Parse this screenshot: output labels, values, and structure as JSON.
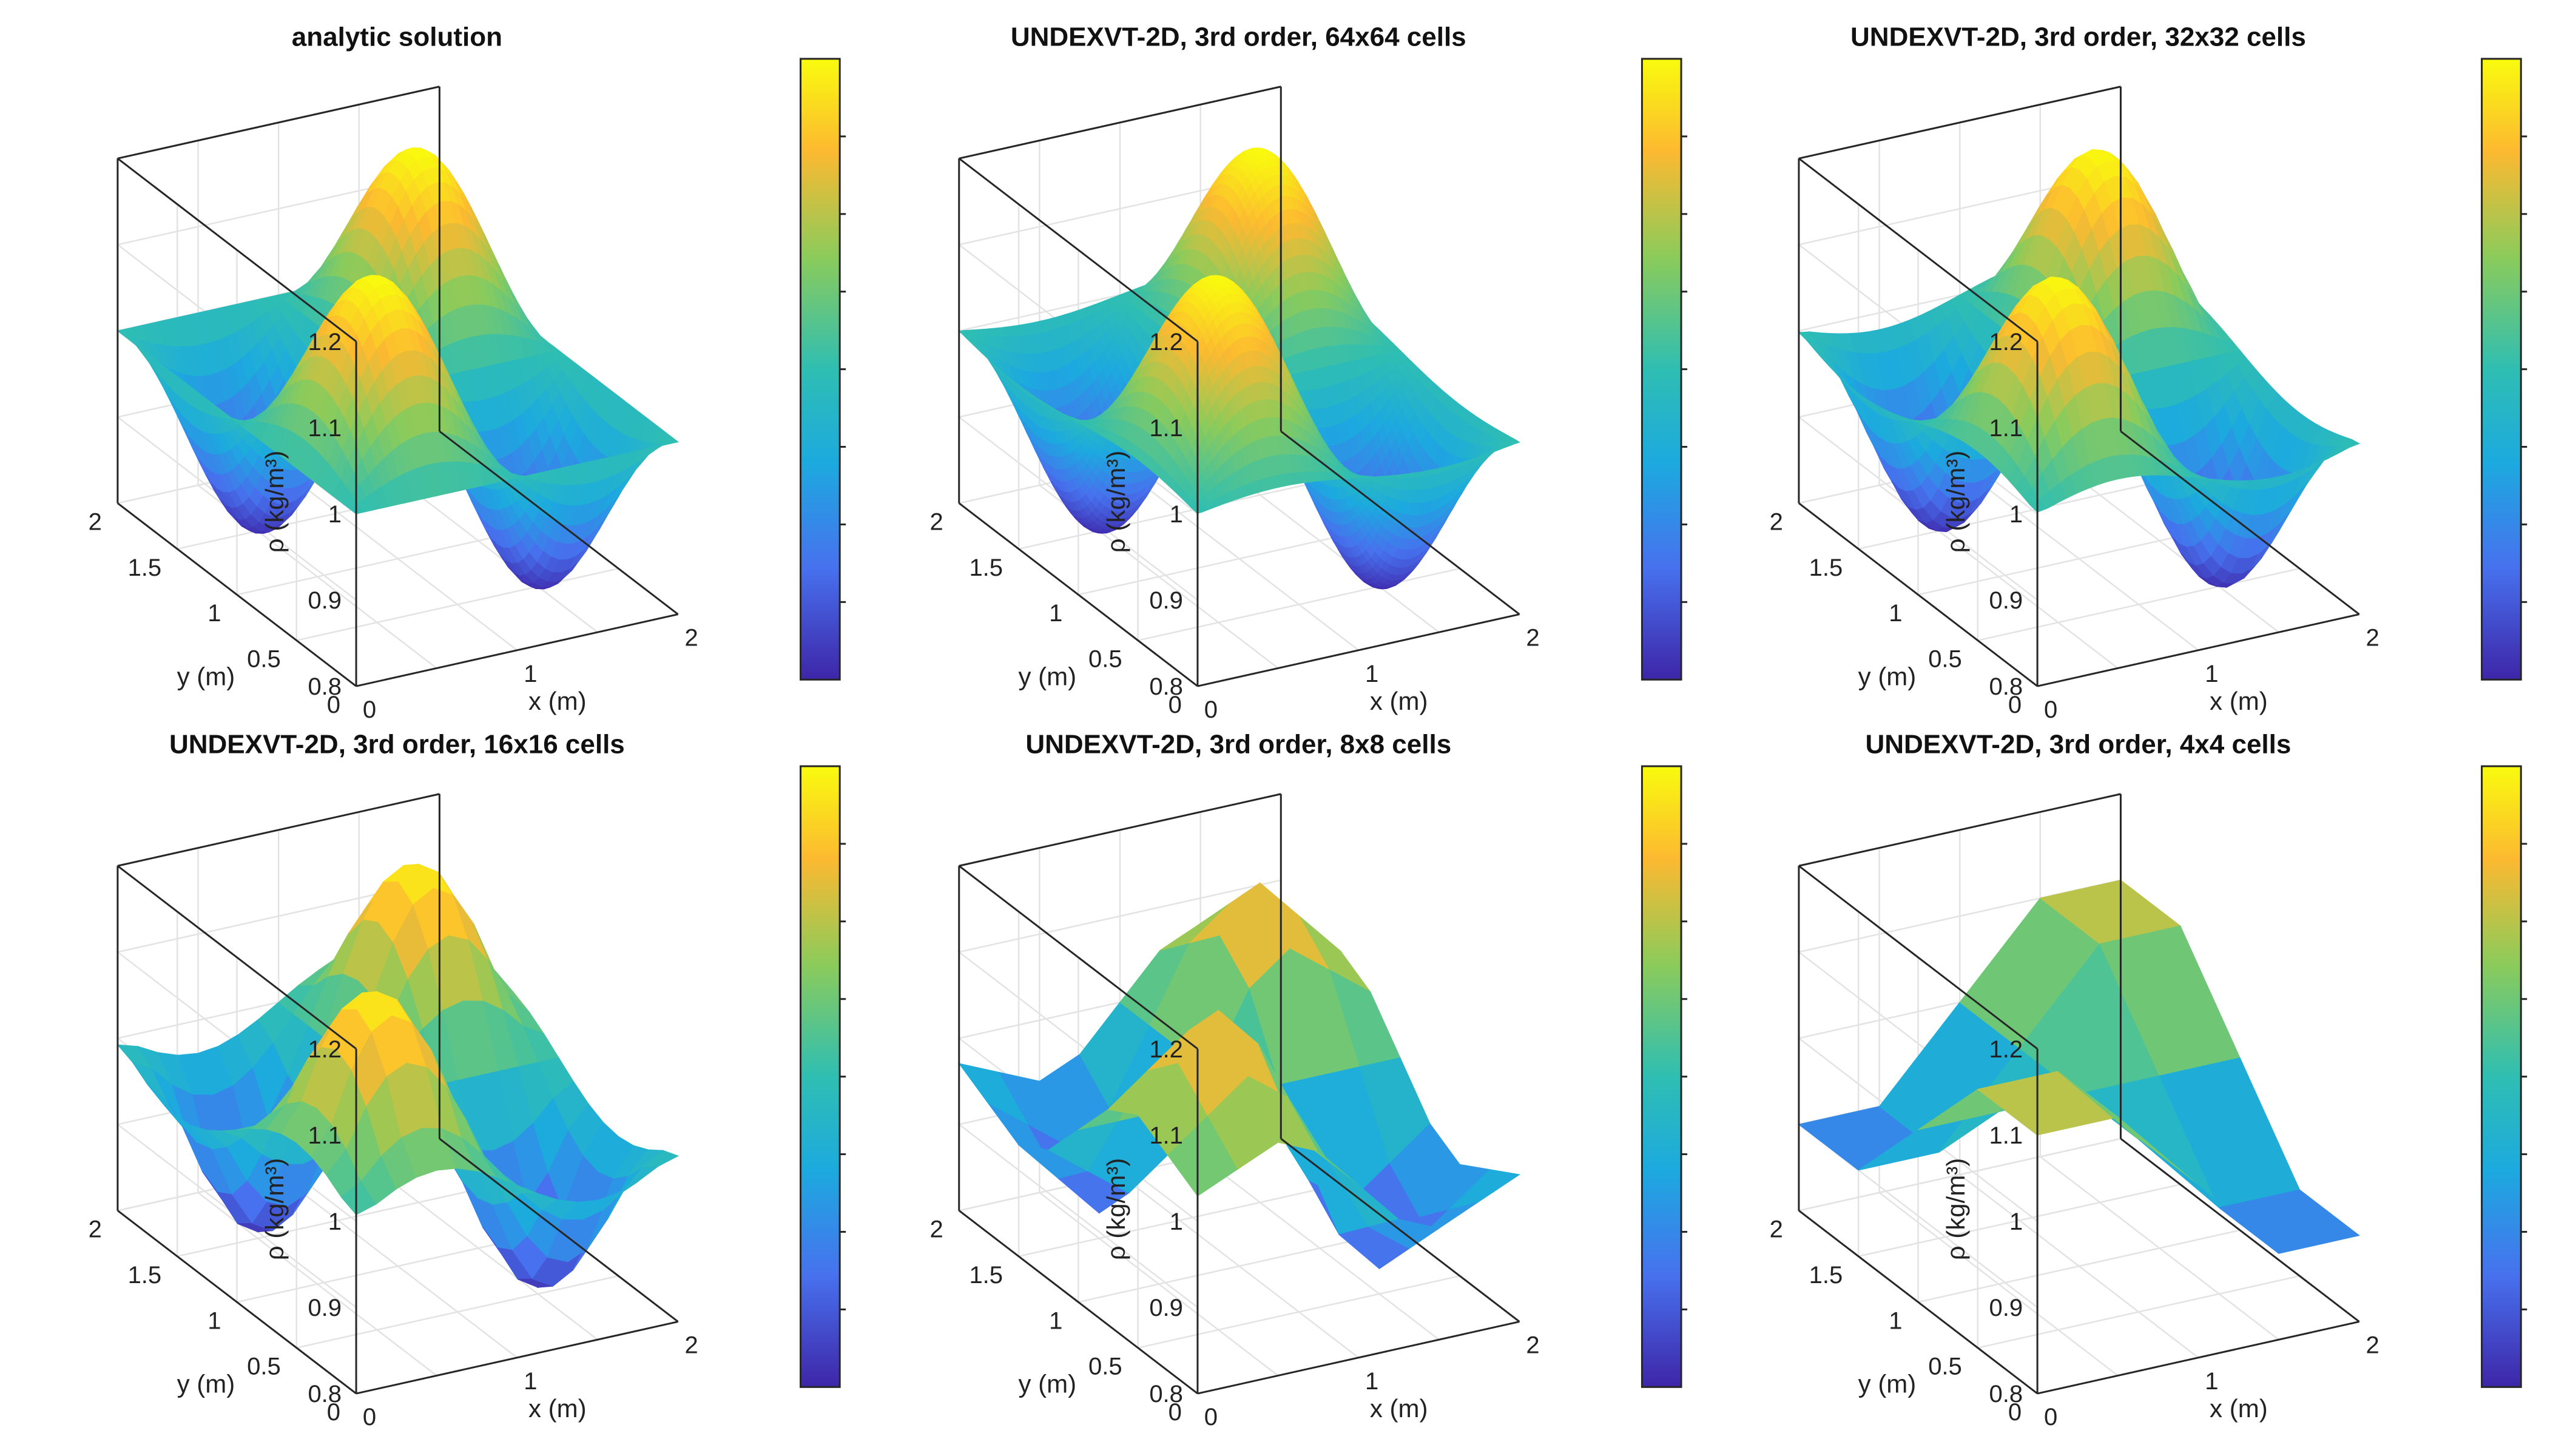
{
  "figure": {
    "colormap_stops": [
      "#3e26a8",
      "#4771ee",
      "#1caadf",
      "#2fbeb2",
      "#8bcb5b",
      "#fcb931",
      "#f9fb0e"
    ]
  },
  "shared_axes": {
    "xlabel": "x (m)",
    "ylabel": "y (m)",
    "zlabel": "ρ (kg/m³)",
    "x_ticks": [
      "0",
      "1",
      "2"
    ],
    "y_ticks": [
      "0",
      "0.5",
      "1",
      "1.5",
      "2"
    ],
    "z_ticks": [
      "0.8",
      "0.9",
      "1",
      "1.1",
      "1.2"
    ]
  },
  "chart_data": [
    {
      "type": "surface",
      "title": "analytic solution",
      "grid_cells": "analytic",
      "xlabel": "x (m)",
      "ylabel": "y (m)",
      "zlabel": "ρ (kg/m³)",
      "xlim": [
        0,
        2
      ],
      "ylim": [
        0,
        2
      ],
      "zlim": [
        0.8,
        1.2
      ],
      "function": "rho = 1 + 0.2 * sin(pi*x) * sin(pi*y)",
      "z_min": 0.8,
      "z_max": 1.2,
      "colorbar": true
    },
    {
      "type": "surface",
      "title": "UNDEXVT-2D, 3rd order, 64x64 cells",
      "grid_cells": 64,
      "xlabel": "x (m)",
      "ylabel": "y (m)",
      "zlabel": "ρ (kg/m³)",
      "xlim": [
        0,
        2
      ],
      "ylim": [
        0,
        2
      ],
      "zlim": [
        0.8,
        1.2
      ],
      "z_min": 0.8,
      "z_max": 1.2,
      "colorbar": true
    },
    {
      "type": "surface",
      "title": "UNDEXVT-2D, 3rd order, 32x32 cells",
      "grid_cells": 32,
      "xlabel": "x (m)",
      "ylabel": "y (m)",
      "zlabel": "ρ (kg/m³)",
      "xlim": [
        0,
        2
      ],
      "ylim": [
        0,
        2
      ],
      "zlim": [
        0.8,
        1.2
      ],
      "z_min": 0.8,
      "z_max": 1.2,
      "colorbar": true
    },
    {
      "type": "surface",
      "title": "UNDEXVT-2D, 3rd order, 16x16 cells",
      "grid_cells": 16,
      "xlabel": "x (m)",
      "ylabel": "y (m)",
      "zlabel": "ρ (kg/m³)",
      "xlim": [
        0,
        2
      ],
      "ylim": [
        0,
        2
      ],
      "zlim": [
        0.8,
        1.2
      ],
      "z_min": 0.81,
      "z_max": 1.19,
      "colorbar": true
    },
    {
      "type": "surface",
      "title": "UNDEXVT-2D, 3rd order, 8x8 cells",
      "grid_cells": 8,
      "xlabel": "x (m)",
      "ylabel": "y (m)",
      "zlabel": "ρ (kg/m³)",
      "xlim": [
        0,
        2
      ],
      "ylim": [
        0,
        2
      ],
      "zlim": [
        0.8,
        1.2
      ],
      "z_min": 0.83,
      "z_max": 1.17,
      "colorbar": true
    },
    {
      "type": "surface",
      "title": "UNDEXVT-2D, 3rd order, 4x4 cells",
      "grid_cells": 4,
      "xlabel": "x (m)",
      "ylabel": "y (m)",
      "zlabel": "ρ (kg/m³)",
      "xlim": [
        0,
        2
      ],
      "ylim": [
        0,
        2
      ],
      "zlim": [
        0.8,
        1.2
      ],
      "z_min": 0.9,
      "z_max": 1.12,
      "colorbar": true
    }
  ]
}
